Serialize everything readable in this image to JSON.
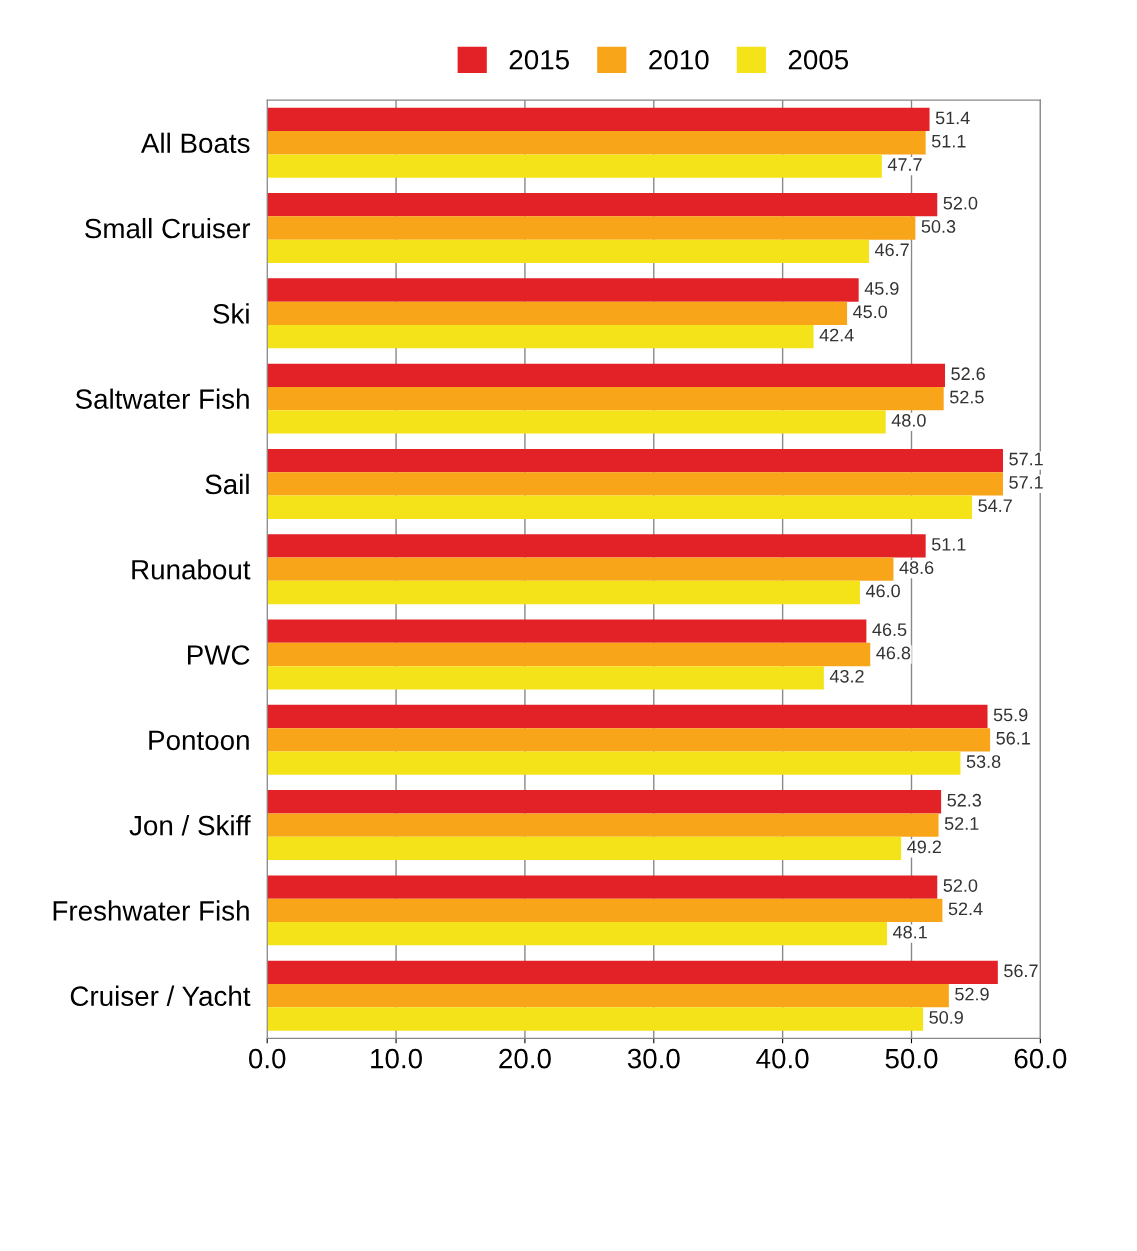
{
  "chart_data": {
    "type": "bar",
    "orientation": "horizontal",
    "categories": [
      "All Boats",
      "Small Cruiser",
      "Ski",
      "Saltwater Fish",
      "Sail",
      "Runabout",
      "PWC",
      "Pontoon",
      "Jon / Skiff",
      "Freshwater Fish",
      "Cruiser / Yacht"
    ],
    "series": [
      {
        "name": "2015",
        "color": "#e32227",
        "values": [
          51.4,
          52.0,
          45.9,
          52.6,
          57.1,
          51.1,
          46.5,
          55.9,
          52.3,
          52.0,
          56.7
        ],
        "value_labels": [
          "51.4",
          "52.0",
          "45.9",
          "52.6",
          "57.1",
          "51.1",
          "46.5",
          "55.9",
          "52.3",
          "52.0",
          "56.7"
        ]
      },
      {
        "name": "2010",
        "color": "#f9a51a",
        "values": [
          51.1,
          50.3,
          45.0,
          52.5,
          57.1,
          48.6,
          46.8,
          56.1,
          52.1,
          52.4,
          52.9
        ],
        "value_labels": [
          "51.1",
          "50.3",
          "45.0",
          "52.5",
          "57.1",
          "48.6",
          "46.8",
          "56.1",
          "52.1",
          "52.4",
          "52.9"
        ]
      },
      {
        "name": "2005",
        "color": "#f5e31a",
        "values": [
          47.7,
          46.7,
          42.4,
          48.0,
          54.7,
          46.0,
          43.2,
          53.8,
          49.2,
          48.1,
          50.9
        ],
        "value_labels": [
          "47.7",
          "46.7",
          "42.4",
          "48.0",
          "54.7",
          "46.0",
          "43.2",
          "53.8",
          "49.2",
          "48.1",
          "50.9"
        ]
      }
    ],
    "xlim": [
      0,
      60
    ],
    "xticks": [
      {
        "value": 0,
        "label": "0.0"
      },
      {
        "value": 10,
        "label": "10.0"
      },
      {
        "value": 20,
        "label": "20.0"
      },
      {
        "value": 30,
        "label": "30.0"
      },
      {
        "value": 40,
        "label": "40.0"
      },
      {
        "value": 50,
        "label": "50.0"
      },
      {
        "value": 60,
        "label": "60.0"
      }
    ],
    "grid": "x",
    "legend": "top"
  }
}
